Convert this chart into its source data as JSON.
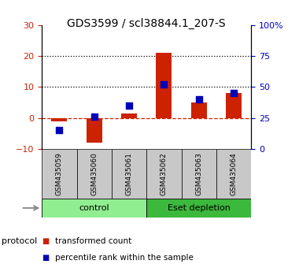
{
  "title": "GDS3599 / scl38844.1_207-S",
  "samples": [
    "GSM435059",
    "GSM435060",
    "GSM435061",
    "GSM435062",
    "GSM435063",
    "GSM435064"
  ],
  "red_values": [
    -1.0,
    -8.0,
    1.5,
    21.0,
    5.0,
    8.0
  ],
  "blue_percentiles": [
    15,
    26,
    35,
    52,
    40,
    45
  ],
  "ylim": [
    -10,
    30
  ],
  "y2lim": [
    0,
    100
  ],
  "yticks_left": [
    -10,
    0,
    10,
    20,
    30
  ],
  "yticks_right": [
    0,
    25,
    50,
    75,
    100
  ],
  "ytick_labels_right": [
    "0",
    "25",
    "50",
    "75",
    "100%"
  ],
  "dotted_lines": [
    10,
    20
  ],
  "groups": [
    {
      "label": "control",
      "indices": [
        0,
        1,
        2
      ],
      "color": "#90EE90"
    },
    {
      "label": "Eset depletion",
      "indices": [
        3,
        4,
        5
      ],
      "color": "#3CB83C"
    }
  ],
  "protocol_label": "protocol",
  "legend_red": "transformed count",
  "legend_blue": "percentile rank within the sample",
  "bar_color": "#CC2200",
  "square_color": "#0000BB",
  "dashed_line_color": "#CC2200",
  "title_fontsize": 10,
  "tick_label_fontsize": 8,
  "axis_color_left": "#CC2200",
  "axis_color_right": "#0000BB",
  "bg_xtick": "#C8C8C8",
  "bar_width": 0.45,
  "square_size": 28
}
